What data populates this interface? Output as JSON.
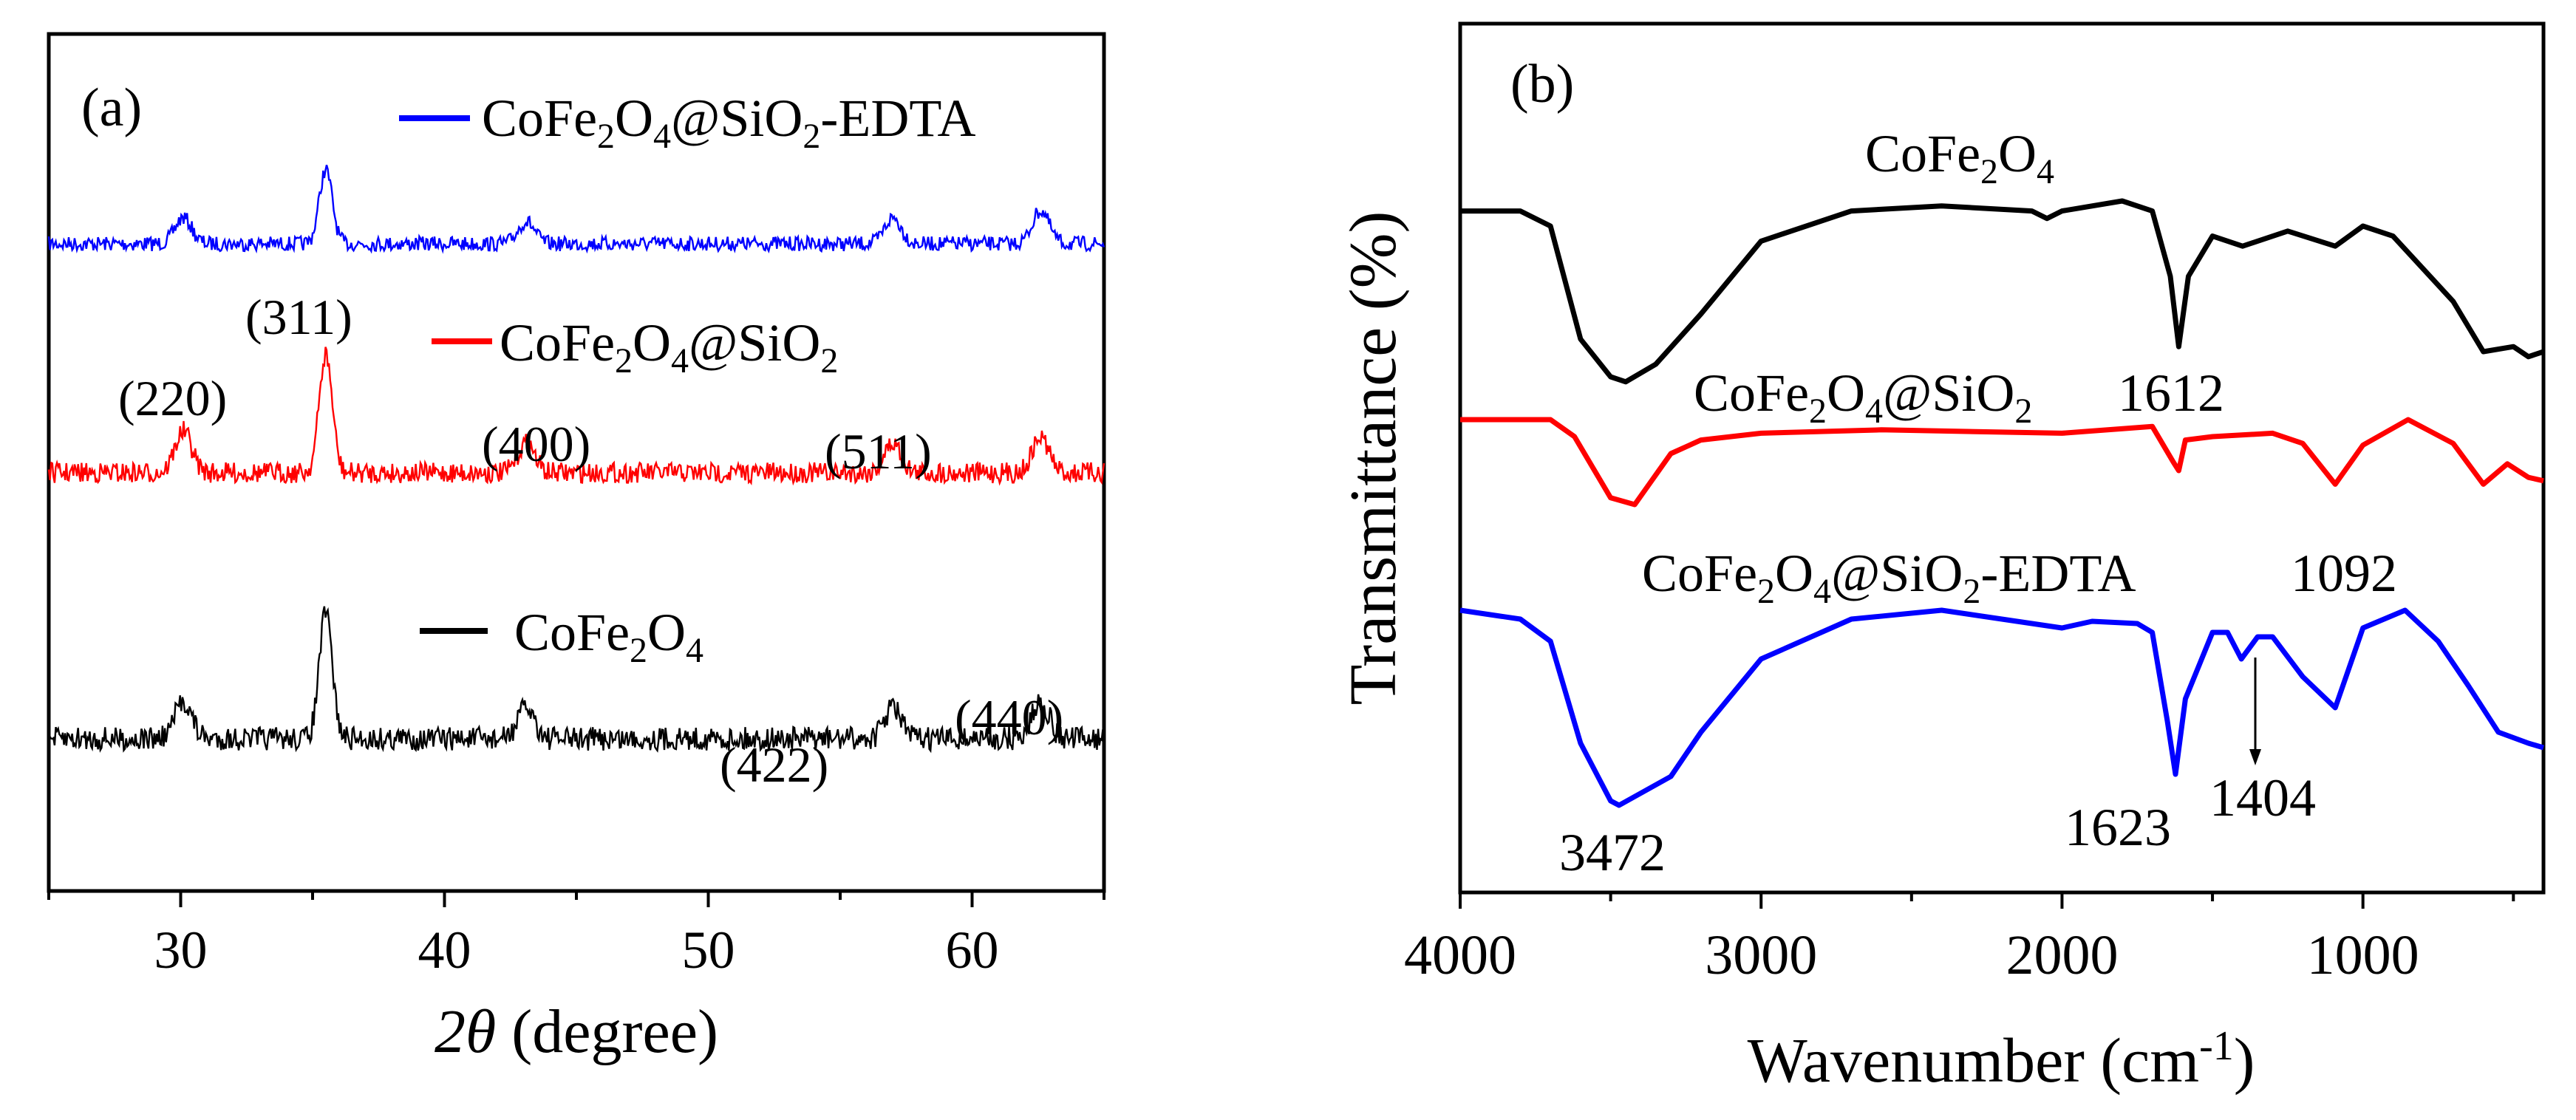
{
  "chart_data": [
    {
      "id": "xrd",
      "type": "line",
      "panel_label": "(a)",
      "xlabel_symbol": "2θ",
      "xlabel_rest": " (degree)",
      "ylabel": "",
      "xlim": [
        25,
        65
      ],
      "xticks": [
        30,
        40,
        50,
        60
      ],
      "y_axis": "hidden",
      "series": [
        {
          "name": "CoFe2O4@SiO2-EDTA",
          "legend_parts": [
            "CoFe",
            "2",
            "O",
            "4",
            "@SiO",
            "2",
            "-EDTA"
          ],
          "color": "#0000ff",
          "baseline": 0,
          "amplitude": 0.45,
          "peaks": [
            {
              "x": 30.1,
              "h": 0.35
            },
            {
              "x": 35.5,
              "h": 1.0
            },
            {
              "x": 43.1,
              "h": 0.3
            },
            {
              "x": 57.0,
              "h": 0.35
            },
            {
              "x": 62.6,
              "h": 0.45
            }
          ]
        },
        {
          "name": "CoFe2O4@SiO2",
          "legend_parts": [
            "CoFe",
            "2",
            "O",
            "4",
            "@SiO",
            "2"
          ],
          "color": "#ff0000",
          "baseline": 0,
          "amplitude": 1.1,
          "peaks": [
            {
              "x": 30.1,
              "h": 0.35
            },
            {
              "x": 35.5,
              "h": 1.0
            },
            {
              "x": 43.1,
              "h": 0.25
            },
            {
              "x": 57.0,
              "h": 0.25
            },
            {
              "x": 62.6,
              "h": 0.3
            }
          ]
        },
        {
          "name": "CoFe2O4",
          "legend_parts": [
            "CoFe",
            "2",
            "O",
            "4"
          ],
          "color": "#000000",
          "baseline": 0,
          "amplitude": 1.1,
          "peaks": [
            {
              "x": 30.1,
              "h": 0.3
            },
            {
              "x": 35.5,
              "h": 1.0
            },
            {
              "x": 43.1,
              "h": 0.25
            },
            {
              "x": 57.0,
              "h": 0.25
            },
            {
              "x": 62.6,
              "h": 0.3
            }
          ]
        }
      ],
      "annotations": [
        "(311)",
        "(220)",
        "(400)",
        "(511)",
        "(422)",
        "(440)"
      ]
    },
    {
      "id": "ftir",
      "type": "line",
      "panel_label": "(b)",
      "xlabel": "Wavenumber (cm",
      "xlabel_sup": "-1",
      "xlabel_end": ")",
      "ylabel": "Transmittance (%)",
      "xlim": [
        4000,
        400
      ],
      "xticks": [
        4000,
        3000,
        2000,
        1000
      ],
      "series": [
        {
          "name": "CoFe2O4",
          "label_parts": [
            "CoFe",
            "2",
            "O",
            "4"
          ],
          "color": "#000000",
          "points": [
            [
              4000,
              0.04
            ],
            [
              3800,
              0.04
            ],
            [
              3700,
              0.1
            ],
            [
              3600,
              0.55
            ],
            [
              3500,
              0.7
            ],
            [
              3450,
              0.72
            ],
            [
              3350,
              0.65
            ],
            [
              3200,
              0.45
            ],
            [
              3000,
              0.16
            ],
            [
              2700,
              0.04
            ],
            [
              2400,
              0.02
            ],
            [
              2100,
              0.04
            ],
            [
              2050,
              0.07
            ],
            [
              2000,
              0.04
            ],
            [
              1800,
              0.0
            ],
            [
              1700,
              0.04
            ],
            [
              1640,
              0.3
            ],
            [
              1612,
              0.58
            ],
            [
              1580,
              0.3
            ],
            [
              1500,
              0.14
            ],
            [
              1400,
              0.18
            ],
            [
              1250,
              0.12
            ],
            [
              1092,
              0.18
            ],
            [
              1000,
              0.1
            ],
            [
              900,
              0.14
            ],
            [
              700,
              0.4
            ],
            [
              600,
              0.6
            ],
            [
              500,
              0.58
            ],
            [
              450,
              0.62
            ],
            [
              400,
              0.6
            ]
          ]
        },
        {
          "name": "CoFe2O4@SiO2",
          "label_parts": [
            "CoFe",
            "2",
            "O",
            "4",
            "@SiO",
            "2"
          ],
          "color": "#ff0000",
          "points": [
            [
              4000,
              0.0
            ],
            [
              3700,
              0.0
            ],
            [
              3620,
              0.1
            ],
            [
              3500,
              0.46
            ],
            [
              3420,
              0.5
            ],
            [
              3300,
              0.2
            ],
            [
              3200,
              0.12
            ],
            [
              3000,
              0.08
            ],
            [
              2600,
              0.06
            ],
            [
              2000,
              0.08
            ],
            [
              1700,
              0.04
            ],
            [
              1630,
              0.25
            ],
            [
              1612,
              0.3
            ],
            [
              1590,
              0.12
            ],
            [
              1500,
              0.1
            ],
            [
              1300,
              0.08
            ],
            [
              1200,
              0.14
            ],
            [
              1092,
              0.38
            ],
            [
              1000,
              0.15
            ],
            [
              850,
              0.0
            ],
            [
              700,
              0.14
            ],
            [
              600,
              0.38
            ],
            [
              520,
              0.26
            ],
            [
              450,
              0.34
            ],
            [
              400,
              0.36
            ]
          ]
        },
        {
          "name": "CoFe2O4@SiO2-EDTA",
          "label_parts": [
            "CoFe",
            "2",
            "O",
            "4",
            "@SiO",
            "2",
            "-EDTA"
          ],
          "color": "#0000ff",
          "points": [
            [
              4000,
              0.0
            ],
            [
              3800,
              0.04
            ],
            [
              3700,
              0.14
            ],
            [
              3600,
              0.6
            ],
            [
              3500,
              0.86
            ],
            [
              3472,
              0.88
            ],
            [
              3300,
              0.75
            ],
            [
              3200,
              0.55
            ],
            [
              3000,
              0.22
            ],
            [
              2700,
              0.04
            ],
            [
              2400,
              0.0
            ],
            [
              2100,
              0.06
            ],
            [
              2000,
              0.08
            ],
            [
              1900,
              0.05
            ],
            [
              1750,
              0.06
            ],
            [
              1700,
              0.1
            ],
            [
              1650,
              0.5
            ],
            [
              1623,
              0.74
            ],
            [
              1590,
              0.4
            ],
            [
              1500,
              0.1
            ],
            [
              1450,
              0.1
            ],
            [
              1404,
              0.22
            ],
            [
              1350,
              0.12
            ],
            [
              1300,
              0.12
            ],
            [
              1200,
              0.3
            ],
            [
              1092,
              0.44
            ],
            [
              1000,
              0.08
            ],
            [
              860,
              0.0
            ],
            [
              750,
              0.14
            ],
            [
              650,
              0.34
            ],
            [
              550,
              0.55
            ],
            [
              450,
              0.6
            ],
            [
              400,
              0.62
            ]
          ]
        }
      ],
      "annotations": {
        "peak_3472": "3472",
        "peak_1623": "1623",
        "peak_1404": "1404",
        "peak_1612": "1612",
        "peak_1092": "1092"
      }
    }
  ]
}
